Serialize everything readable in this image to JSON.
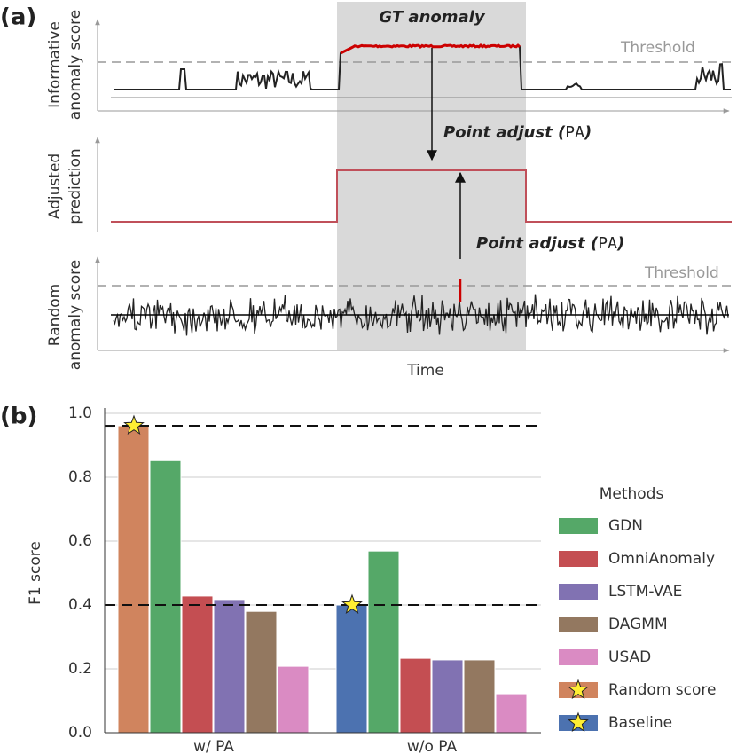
{
  "panel_a": {
    "label": "(a)",
    "gt_label": "GT anomaly",
    "threshold_label": "Threshold",
    "top_ylabel": [
      "Informative",
      "anomaly score"
    ],
    "mid_ylabel": [
      "Adjusted",
      "prediction"
    ],
    "bottom_ylabel": [
      "Random",
      "anomaly score"
    ],
    "xlabel": "Time",
    "point_adjust": [
      "Point adjust (",
      "PA",
      ")"
    ]
  },
  "chart_data": {
    "type": "bar",
    "panel_label": "(b)",
    "ylabel": "F1 score",
    "categories": [
      "w/ PA",
      "w/o PA"
    ],
    "ylim": [
      0,
      1.0
    ],
    "yticks": [
      {
        "value": 0,
        "label": "0.0"
      },
      0.2,
      0.4,
      0.6,
      0.8,
      {
        "value": 1.0,
        "label": "1.0"
      }
    ],
    "grid": true,
    "legend_title": "Methods",
    "legend": "right",
    "series": [
      {
        "name": "GDN",
        "color": "#55a868",
        "values": [
          0.852,
          0.569
        ]
      },
      {
        "name": "OmniAnomaly",
        "color": "#c44e52",
        "values": [
          0.428,
          0.233
        ]
      },
      {
        "name": "LSTM-VAE",
        "color": "#8172b2",
        "values": [
          0.417,
          0.228
        ]
      },
      {
        "name": "DAGMM",
        "color": "#937860",
        "values": [
          0.38,
          0.228
        ]
      },
      {
        "name": "USAD",
        "color": "#da8bc3",
        "values": [
          0.208,
          0.122
        ]
      },
      {
        "name": "Random score",
        "color": "#d0845e",
        "values": [
          0.961,
          null
        ],
        "star": true
      },
      {
        "name": "Baseline",
        "color": "#4c72b0",
        "values": [
          null,
          0.4
        ],
        "star": true
      }
    ]
  }
}
